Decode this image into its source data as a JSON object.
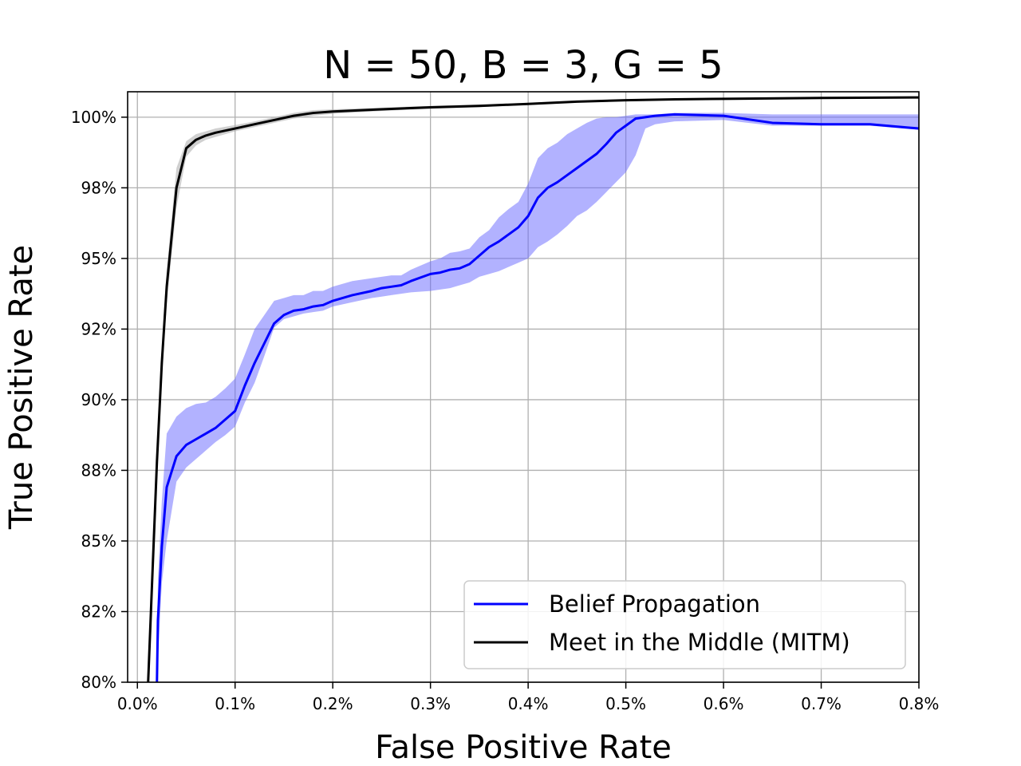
{
  "chart_data": {
    "type": "line",
    "title": "N = 50, B = 3, G = 5",
    "xlabel": "False Positive Rate",
    "ylabel": "True Positive Rate",
    "xlim": [
      -0.01,
      0.8
    ],
    "ylim": [
      80,
      100.9
    ],
    "x_ticks": [
      0.0,
      0.1,
      0.2,
      0.3,
      0.4,
      0.5,
      0.6,
      0.7,
      0.8
    ],
    "x_tick_labels": [
      "0.0%",
      "0.1%",
      "0.2%",
      "0.3%",
      "0.4%",
      "0.5%",
      "0.6%",
      "0.7%",
      "0.8%"
    ],
    "y_ticks": [
      80,
      82.5,
      85,
      87.5,
      90,
      92.5,
      95,
      97.5,
      100
    ],
    "y_tick_labels": [
      "80%",
      "82%",
      "85%",
      "88%",
      "90%",
      "92%",
      "95%",
      "98%",
      "100%"
    ],
    "grid": true,
    "legend_position": "bottom-right",
    "series": [
      {
        "name": "Belief Propagation",
        "color": "#0000ff",
        "band_color": "#6666ff",
        "x": [
          0.02,
          0.021,
          0.025,
          0.03,
          0.04,
          0.05,
          0.06,
          0.07,
          0.08,
          0.09,
          0.1,
          0.11,
          0.12,
          0.13,
          0.14,
          0.15,
          0.16,
          0.17,
          0.18,
          0.19,
          0.2,
          0.22,
          0.24,
          0.25,
          0.26,
          0.27,
          0.28,
          0.3,
          0.31,
          0.32,
          0.33,
          0.34,
          0.35,
          0.36,
          0.37,
          0.38,
          0.39,
          0.4,
          0.41,
          0.42,
          0.43,
          0.44,
          0.45,
          0.46,
          0.47,
          0.48,
          0.49,
          0.5,
          0.51,
          0.52,
          0.53,
          0.55,
          0.6,
          0.65,
          0.7,
          0.75,
          0.8
        ],
        "y": [
          80.0,
          82.2,
          84.8,
          86.9,
          88.0,
          88.4,
          88.6,
          88.8,
          89.0,
          89.3,
          89.6,
          90.5,
          91.3,
          92.0,
          92.7,
          93.0,
          93.15,
          93.2,
          93.3,
          93.35,
          93.5,
          93.7,
          93.85,
          93.95,
          94.0,
          94.05,
          94.2,
          94.45,
          94.5,
          94.6,
          94.65,
          94.8,
          95.1,
          95.4,
          95.6,
          95.85,
          96.1,
          96.5,
          97.15,
          97.5,
          97.7,
          97.95,
          98.2,
          98.45,
          98.7,
          99.05,
          99.45,
          99.7,
          99.95,
          100.0,
          100.05,
          100.1,
          100.05,
          99.8,
          99.75,
          99.75,
          99.6
        ],
        "y_low": [
          80.0,
          80.8,
          83.5,
          85.0,
          87.1,
          87.6,
          87.9,
          88.2,
          88.5,
          88.75,
          89.05,
          89.9,
          90.6,
          91.55,
          92.55,
          92.85,
          92.95,
          93.05,
          93.1,
          93.15,
          93.3,
          93.45,
          93.6,
          93.65,
          93.7,
          93.75,
          93.8,
          93.85,
          93.9,
          93.95,
          94.05,
          94.15,
          94.35,
          94.45,
          94.55,
          94.7,
          94.85,
          95.0,
          95.4,
          95.6,
          95.85,
          96.15,
          96.5,
          96.7,
          97.0,
          97.35,
          97.7,
          98.05,
          98.65,
          99.6,
          99.75,
          99.85,
          99.9,
          99.7,
          99.7,
          99.7,
          99.55
        ],
        "y_high": [
          80.0,
          83.6,
          86.4,
          88.8,
          89.4,
          89.7,
          89.85,
          89.9,
          90.1,
          90.4,
          90.75,
          91.6,
          92.5,
          93.0,
          93.5,
          93.6,
          93.7,
          93.7,
          93.85,
          93.85,
          94.0,
          94.2,
          94.3,
          94.35,
          94.4,
          94.4,
          94.6,
          94.9,
          95.0,
          95.2,
          95.25,
          95.35,
          95.75,
          96.0,
          96.45,
          96.75,
          97.0,
          97.65,
          98.55,
          98.9,
          99.1,
          99.4,
          99.6,
          99.8,
          99.95,
          100.0,
          100.0,
          100.05,
          100.1,
          100.1,
          100.1,
          100.15,
          100.15,
          100.1,
          100.1,
          100.1,
          100.1
        ]
      },
      {
        "name": "Meet in the Middle (MITM)",
        "color": "#000000",
        "band_color": "#b0b0b0",
        "x": [
          0.011,
          0.015,
          0.02,
          0.025,
          0.03,
          0.04,
          0.05,
          0.06,
          0.07,
          0.08,
          0.1,
          0.12,
          0.14,
          0.16,
          0.18,
          0.2,
          0.25,
          0.3,
          0.35,
          0.4,
          0.45,
          0.5,
          0.55,
          0.6,
          0.7,
          0.8
        ],
        "y": [
          80.0,
          83.5,
          87.8,
          91.3,
          94.0,
          97.5,
          98.9,
          99.2,
          99.35,
          99.45,
          99.6,
          99.75,
          99.9,
          100.05,
          100.15,
          100.2,
          100.28,
          100.35,
          100.4,
          100.47,
          100.55,
          100.6,
          100.63,
          100.65,
          100.68,
          100.7
        ],
        "y_low": [
          80.0,
          83.1,
          87.3,
          90.7,
          93.4,
          96.8,
          98.6,
          99.0,
          99.2,
          99.3,
          99.5,
          99.65,
          99.8,
          99.95,
          100.05,
          100.12,
          100.22,
          100.3,
          100.36,
          100.43,
          100.52,
          100.57,
          100.6,
          100.62,
          100.65,
          100.67
        ],
        "y_high": [
          80.0,
          84.0,
          88.3,
          91.9,
          94.6,
          98.2,
          99.15,
          99.4,
          99.5,
          99.6,
          99.72,
          99.85,
          100.0,
          100.15,
          100.25,
          100.28,
          100.34,
          100.4,
          100.45,
          100.51,
          100.58,
          100.63,
          100.66,
          100.68,
          100.71,
          100.73
        ]
      }
    ]
  }
}
